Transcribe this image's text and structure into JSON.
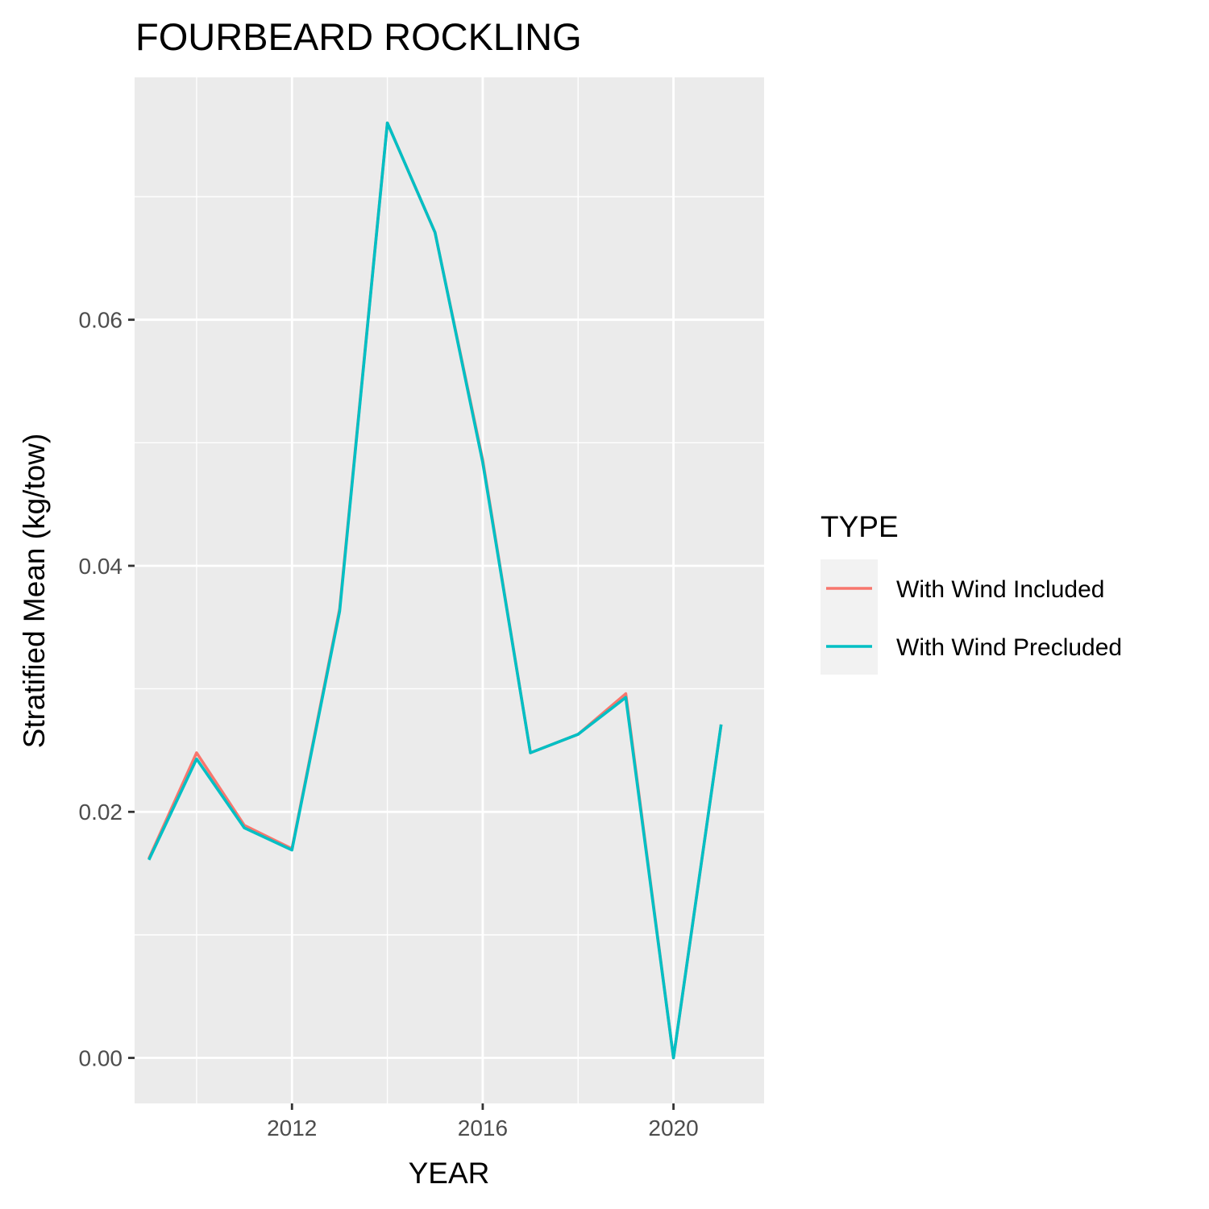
{
  "chart_data": {
    "type": "line",
    "title": "FOURBEARD ROCKLING",
    "xlabel": "YEAR",
    "ylabel": "Stratified Mean (kg/tow)",
    "xlim": [
      2008.7,
      2021.9
    ],
    "ylim": [
      -0.0037,
      0.0797
    ],
    "x_major_ticks": [
      2012,
      2016,
      2020
    ],
    "x_tick_labels": [
      "2012",
      "2016",
      "2020"
    ],
    "x_minor_gridlines": [
      2010,
      2014,
      2018
    ],
    "y_major_ticks": [
      0.0,
      0.02,
      0.04,
      0.06
    ],
    "y_tick_labels": [
      "0.00",
      "0.02",
      "0.04",
      "0.06"
    ],
    "y_minor_gridlines": [
      0.01,
      0.03,
      0.05,
      0.07
    ],
    "grid": true,
    "panel_background": "#ebebeb",
    "legend": {
      "title": "TYPE",
      "position": "right",
      "background": "#f2f2f2"
    },
    "x": [
      2009,
      2010,
      2011,
      2012,
      2013,
      2014,
      2015,
      2016,
      2017,
      2018,
      2019,
      2020,
      2021
    ],
    "series": [
      {
        "name": "With Wind Included",
        "color": "#F8766D",
        "values": [
          0.0162,
          0.0248,
          0.0189,
          0.017,
          0.0365,
          0.076,
          0.0671,
          0.0486,
          0.0248,
          0.0263,
          0.0296,
          0.0,
          0.0271
        ]
      },
      {
        "name": "With Wind Precluded",
        "color": "#00BFC4",
        "values": [
          0.0161,
          0.0243,
          0.0187,
          0.0169,
          0.0363,
          0.076,
          0.0671,
          0.0484,
          0.0248,
          0.0263,
          0.0293,
          0.0,
          0.0271
        ]
      }
    ]
  }
}
